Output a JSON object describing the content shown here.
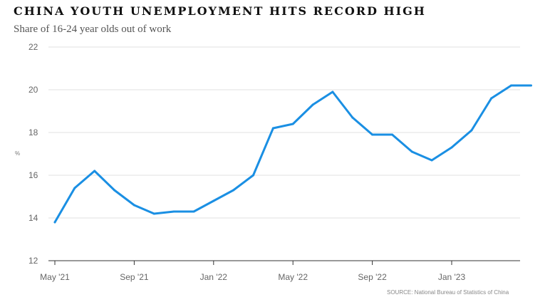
{
  "chart_data": {
    "type": "line",
    "title": "CHINA YOUTH UNEMPLOYMENT HITS RECORD HIGH",
    "subtitle": "Share of 16-24 year olds out of work",
    "ylabel": "%",
    "xlabel": "",
    "source": "SOURCE: National Bureau of Statistics of China",
    "ylim": [
      12,
      22
    ],
    "yticks": [
      12,
      14,
      16,
      18,
      20,
      22
    ],
    "xticks": [
      {
        "index": 0,
        "label": "May '21"
      },
      {
        "index": 4,
        "label": "Sep '21"
      },
      {
        "index": 8,
        "label": "Jan '22"
      },
      {
        "index": 12,
        "label": "May '22"
      },
      {
        "index": 16,
        "label": "Sep '22"
      },
      {
        "index": 20,
        "label": "Jan '23"
      }
    ],
    "grid": true,
    "series": [
      {
        "color": "#1a8fe3",
        "x": [
          "May '21",
          "Jun '21",
          "Jul '21",
          "Aug '21",
          "Sep '21",
          "Oct '21",
          "Nov '21",
          "Dec '21",
          "Jan '22",
          "Feb '22",
          "Mar '22",
          "Apr '22",
          "May '22",
          "Jun '22",
          "Jul '22",
          "Aug '22",
          "Sep '22",
          "Oct '22",
          "Nov '22",
          "Dec '22",
          "Jan '23",
          "Feb '23",
          "Mar '23",
          "Apr '23",
          "May '23"
        ],
        "values": [
          13.8,
          15.4,
          16.2,
          15.3,
          14.6,
          14.2,
          14.3,
          14.3,
          14.8,
          15.3,
          16.0,
          18.2,
          18.4,
          19.3,
          19.9,
          18.7,
          17.9,
          17.9,
          17.1,
          16.7,
          17.3,
          18.1,
          19.6,
          20.2,
          20.2
        ]
      }
    ]
  }
}
